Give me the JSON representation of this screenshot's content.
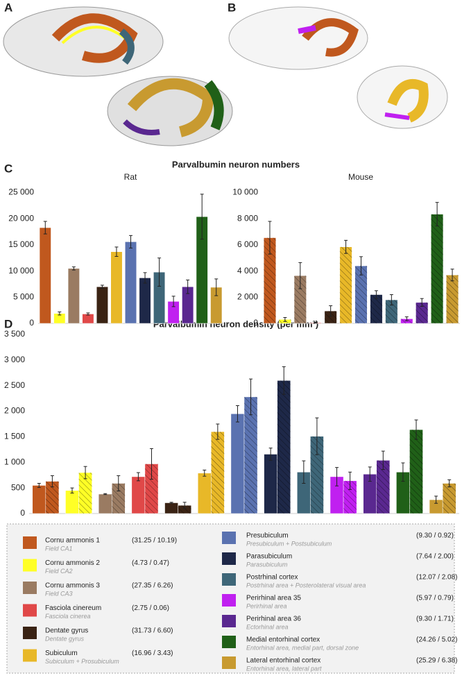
{
  "panel_labels": [
    "A",
    "B",
    "C",
    "D"
  ],
  "chart_data": [
    {
      "type": "bar",
      "title": "Parvalbumin neuron numbers",
      "subtitle": "Rat",
      "colors": [
        "#c0581e",
        "#ffff26",
        "#9a7b62",
        "#e04848",
        "#3a2314",
        "#e8b828",
        "#5a72b0",
        "#1e2848",
        "#3e6678",
        "#c020f0",
        "#5a2890",
        "#206018",
        "#c89a30"
      ],
      "series": [
        {
          "values": [
            18300,
            1900,
            10500,
            1800,
            7000,
            13700,
            15600,
            8700,
            9800,
            4200,
            7000,
            20400,
            6900
          ],
          "errors": [
            1200,
            300,
            300,
            200,
            300,
            900,
            1200,
            1000,
            2700,
            1000,
            1300,
            4300,
            1600
          ],
          "hatched": false
        }
      ],
      "ylim": [
        0,
        26000
      ],
      "yticks": [
        0,
        {
          "value": 5000,
          "label": "5 000"
        },
        {
          "value": 10000,
          "label": "10 000"
        },
        {
          "value": 15000,
          "label": "15 000"
        },
        {
          "value": 20000,
          "label": "20 000"
        },
        {
          "value": 25000,
          "label": "25 000"
        }
      ]
    },
    {
      "type": "bar",
      "subtitle": "Mouse",
      "colors": [
        "#c0581e",
        "#ffff26",
        "#9a7b62",
        "#e04848",
        "#3a2314",
        "#e8b828",
        "#5a72b0",
        "#1e2848",
        "#3e6678",
        "#c020f0",
        "#5a2890",
        "#206018",
        "#c89a30"
      ],
      "series": [
        {
          "values": [
            6550,
            300,
            3650,
            50,
            950,
            5850,
            4400,
            2200,
            1800,
            350,
            1600,
            8350,
            3700
          ],
          "errors": [
            1250,
            150,
            1000,
            30,
            400,
            500,
            700,
            300,
            400,
            150,
            300,
            900,
            450
          ],
          "hatched": true
        }
      ],
      "ylim": [
        0,
        10400
      ],
      "yticks": [
        0,
        {
          "value": 2000,
          "label": "2 000"
        },
        {
          "value": 4000,
          "label": "4 000"
        },
        {
          "value": 6000,
          "label": "6 000"
        },
        {
          "value": 8000,
          "label": "8 000"
        },
        {
          "value": 10000,
          "label": "10 000"
        }
      ]
    },
    {
      "type": "bar",
      "title": "Parvalbumin neuron density (per mm³)",
      "colors": [
        "#c0581e",
        "#ffff26",
        "#9a7b62",
        "#e04848",
        "#3a2314",
        "#e8b828",
        "#5a72b0",
        "#1e2848",
        "#3e6678",
        "#c020f0",
        "#5a2890",
        "#206018",
        "#c89a30"
      ],
      "series": [
        {
          "values": [
            550,
            450,
            380,
            720,
            210,
            790,
            1950,
            1160,
            810,
            720,
            770,
            810,
            270
          ],
          "errors": [
            40,
            50,
            10,
            80,
            10,
            60,
            160,
            120,
            220,
            180,
            140,
            180,
            70
          ],
          "hatched": false
        },
        {
          "values": [
            630,
            800,
            590,
            970,
            160,
            1600,
            2280,
            2600,
            1510,
            640,
            1040,
            1640,
            590
          ],
          "errors": [
            110,
            120,
            150,
            300,
            60,
            150,
            350,
            270,
            360,
            170,
            180,
            190,
            70
          ],
          "hatched": true
        }
      ],
      "ylim": [
        0,
        3500
      ],
      "yticks": [
        0,
        500,
        {
          "value": 1000,
          "label": "1 000"
        },
        {
          "value": 1500,
          "label": "1 500"
        },
        {
          "value": 2000,
          "label": "2 000"
        },
        {
          "value": 2500,
          "label": "2 500"
        },
        {
          "value": 3000,
          "label": "3 000"
        },
        {
          "value": 3500,
          "label": "3 500"
        }
      ]
    }
  ],
  "legend": [
    {
      "name": "Cornu ammonis 1",
      "subtitle": "Field CA1",
      "value_text": "(31.25 / 10.19)"
    },
    {
      "name": "Cornu ammonis 2",
      "subtitle": "Field CA2",
      "value_text": "(4.73 / 0.47)"
    },
    {
      "name": "Cornu ammonis 3",
      "subtitle": "Field CA3",
      "value_text": "(27.35 / 6.26)"
    },
    {
      "name": "Fasciola cinereum",
      "subtitle": "Fasciola cinerea",
      "value_text": "(2.75 / 0.06)"
    },
    {
      "name": "Dentate gyrus",
      "subtitle": "Dentate gyrus",
      "value_text": "(31.73 / 6.60)"
    },
    {
      "name": "Subiculum",
      "subtitle": "Subiculum + Prosubiculum",
      "value_text": "(16.96 / 3.43)"
    },
    {
      "name": "Presubiculum",
      "subtitle": "Presubiculum + Postsubiculum",
      "value_text": "(9.30 / 0.92)"
    },
    {
      "name": "Parasubiculum",
      "subtitle": "Parasubiculum",
      "value_text": "(7.64 / 2.00)"
    },
    {
      "name": "Postrhinal cortex",
      "subtitle": "Postrhinal area + Posterolateral visual area",
      "value_text": "(12.07 / 2.08)"
    },
    {
      "name": "Perirhinal area 35",
      "subtitle": "Perirhinal area",
      "value_text": "(5.97 / 0.79)"
    },
    {
      "name": "Perirhinal area 36",
      "subtitle": "Ectorhinal area",
      "value_text": "(9.30 / 1.71)"
    },
    {
      "name": "Medial entorhinal cortex",
      "subtitle": "Entorhinal area, medial part, dorsal zone",
      "value_text": "(24.26 / 5.02)"
    },
    {
      "name": "Lateral entorhinal cortex",
      "subtitle": "Entorhinal area, lateral part",
      "value_text": "(25.29 / 6.38)"
    }
  ]
}
